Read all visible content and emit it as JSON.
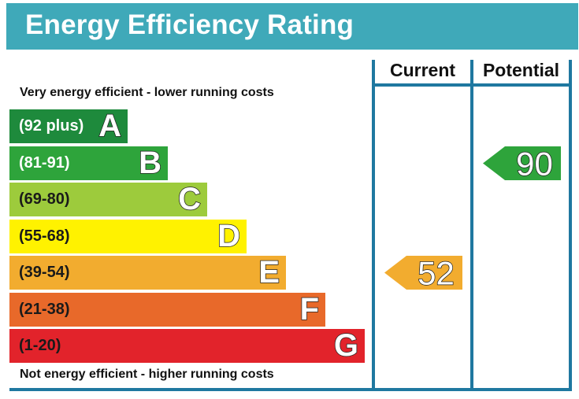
{
  "title": "Energy Efficiency Rating",
  "captions": {
    "top": "Very energy efficient - lower running costs",
    "bottom": "Not energy efficient - higher running costs"
  },
  "columns": {
    "current": "Current",
    "potential": "Potential"
  },
  "chart_data": {
    "type": "bar",
    "title": "Energy Efficiency Rating",
    "bands": [
      {
        "letter": "A",
        "range": "(92 plus)",
        "color": "#1e8a3c"
      },
      {
        "letter": "B",
        "range": "(81-91)",
        "color": "#2ea43b"
      },
      {
        "letter": "C",
        "range": "(69-80)",
        "color": "#9dcb3c"
      },
      {
        "letter": "D",
        "range": "(55-68)",
        "color": "#fff200"
      },
      {
        "letter": "E",
        "range": "(39-54)",
        "color": "#f2ac2f"
      },
      {
        "letter": "F",
        "range": "(21-38)",
        "color": "#e8692a"
      },
      {
        "letter": "G",
        "range": "(1-20)",
        "color": "#e2232b"
      }
    ],
    "current": {
      "value": 52,
      "label": "52",
      "band": "E",
      "color": "#f2ac2f"
    },
    "potential": {
      "value": 90,
      "label": "90",
      "band": "B",
      "color": "#2ea43b"
    }
  }
}
